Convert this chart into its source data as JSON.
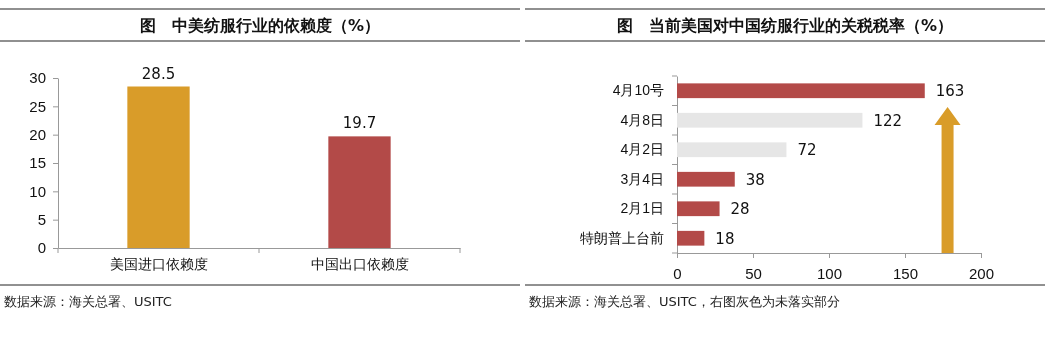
{
  "chart_data": [
    {
      "type": "bar",
      "title": "图　中美纺服行业的依赖度（%）",
      "categories": [
        "美国进口依赖度",
        "中国出口依赖度"
      ],
      "values": [
        28.5,
        19.7
      ],
      "colors": [
        "#d99c29",
        "#b34a48"
      ],
      "ylim": [
        0,
        30
      ],
      "yticks": [
        0,
        5,
        10,
        15,
        20,
        25,
        30
      ],
      "data_labels": true,
      "annotations": [
        "数据来源：海关总署、USITC"
      ]
    },
    {
      "type": "bar",
      "orientation": "horizontal",
      "title": "图　当前美国对中国纺服行业的关税税率（%）",
      "categories": [
        "4月10号",
        "4月8日",
        "4月2日",
        "3月4日",
        "2月1日",
        "特朗普上台前"
      ],
      "values": [
        163,
        122,
        72,
        38,
        28,
        18
      ],
      "colors": [
        "#b34a48",
        "#e6e6e6",
        "#e6e6e6",
        "#b34a48",
        "#b34a48",
        "#b34a48"
      ],
      "xlim": [
        0,
        200
      ],
      "xticks": [
        0,
        50,
        100,
        150,
        200
      ],
      "data_labels": true,
      "annotations": [
        "数据来源：海关总署、USITC，右图灰色为未落实部分"
      ]
    }
  ]
}
